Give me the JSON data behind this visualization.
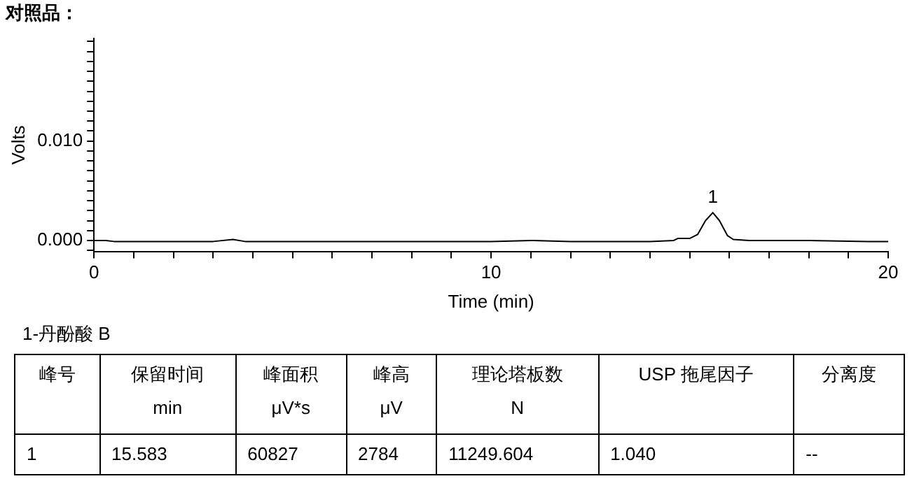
{
  "chart_data": {
    "type": "line",
    "title": "对照品：",
    "xlabel": "Time (min)",
    "ylabel": "Volts",
    "x": [
      0,
      0.3,
      0.5,
      1,
      2,
      3,
      3.5,
      3.8,
      4,
      6,
      8,
      10,
      11,
      12,
      14,
      14.6,
      14.7,
      15,
      15.2,
      15.4,
      15.583,
      15.75,
      15.95,
      16.1,
      16.5,
      18,
      19.5,
      20
    ],
    "series": [
      {
        "color": "#000000",
        "values": [
          0,
          0,
          -0.0001,
          -0.0001,
          -0.0001,
          -0.0001,
          0.0001,
          -0.0001,
          -0.0001,
          -0.0001,
          -0.0001,
          -0.0001,
          0,
          -0.0001,
          -0.0001,
          0,
          0.0002,
          0.0002,
          0.0006,
          0.002,
          0.0028,
          0.002,
          0.0005,
          0.0001,
          0,
          0,
          -0.0001,
          -0.0001
        ]
      }
    ],
    "xlim": [
      0,
      20
    ],
    "xticks": [
      0,
      {
        "value": 1,
        "label": null
      },
      {
        "value": 2,
        "label": null
      },
      {
        "value": 3,
        "label": null
      },
      {
        "value": 4,
        "label": null
      },
      {
        "value": 5,
        "label": null
      },
      {
        "value": 6,
        "label": null
      },
      {
        "value": 7,
        "label": null
      },
      {
        "value": 8,
        "label": null
      },
      {
        "value": 9,
        "label": null
      },
      10,
      {
        "value": 11,
        "label": null
      },
      {
        "value": 12,
        "label": null
      },
      {
        "value": 13,
        "label": null
      },
      {
        "value": 14,
        "label": null
      },
      {
        "value": 15,
        "label": null
      },
      {
        "value": 16,
        "label": null
      },
      {
        "value": 17,
        "label": null
      },
      {
        "value": 18,
        "label": null
      },
      {
        "value": 19,
        "label": null
      },
      20
    ],
    "ylim": [
      -0.0011,
      0.0203
    ],
    "yticks": [
      {
        "value": -0.001,
        "label": null
      },
      {
        "value": 0,
        "label": "0.000"
      },
      {
        "value": 0.001,
        "label": null
      },
      {
        "value": 0.002,
        "label": null
      },
      {
        "value": 0.003,
        "label": null
      },
      {
        "value": 0.004,
        "label": null
      },
      {
        "value": 0.005,
        "label": null
      },
      {
        "value": 0.006,
        "label": null
      },
      {
        "value": 0.007,
        "label": null
      },
      {
        "value": 0.008,
        "label": null
      },
      {
        "value": 0.009,
        "label": null
      },
      {
        "value": 0.01,
        "label": "0.010"
      },
      {
        "value": 0.011,
        "label": null
      },
      {
        "value": 0.012,
        "label": null
      },
      {
        "value": 0.013,
        "label": null
      },
      {
        "value": 0.014,
        "label": null
      },
      {
        "value": 0.015,
        "label": null
      },
      {
        "value": 0.016,
        "label": null
      },
      {
        "value": 0.017,
        "label": null
      },
      {
        "value": 0.018,
        "label": null
      },
      {
        "value": 0.019,
        "label": null
      },
      {
        "value": 0.02,
        "label": null
      }
    ],
    "grid": false,
    "legend": false,
    "marker": "none",
    "line_style": "solid",
    "annotations": [
      {
        "text": "1",
        "x": 15.583,
        "y": 0.0028
      },
      "1-丹酚酸 B",
      "峰号",
      "保留时间\nmin",
      "峰面积\nμV*s",
      "峰高\nμV",
      "理论塔板数\nN",
      "USP 拖尾因子",
      "分离度",
      "1",
      "15.583",
      "60827",
      "2784",
      "11249.604",
      "1.040",
      "--"
    ]
  }
}
